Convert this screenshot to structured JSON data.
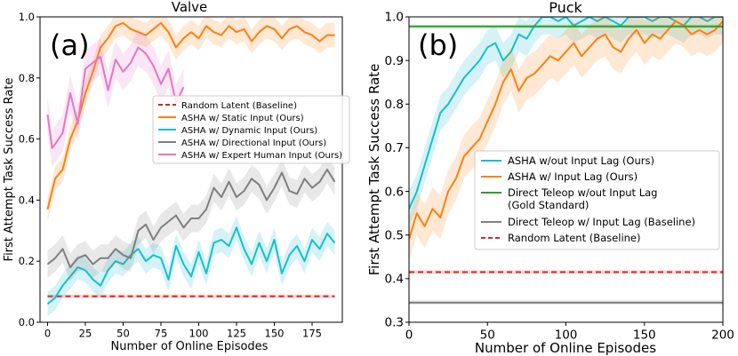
{
  "chart_data": [
    {
      "type": "line",
      "panel_label": "(a)",
      "title": "Valve",
      "xlabel": "Number of Online Episodes",
      "ylabel": "First Attempt Task Success Rate",
      "xlim": [
        -5,
        195
      ],
      "ylim": [
        0.0,
        1.0
      ],
      "xticks": [
        0,
        25,
        50,
        75,
        100,
        125,
        150,
        175
      ],
      "yticks": [
        0.0,
        0.2,
        0.4,
        0.6,
        0.8,
        1.0
      ],
      "legend_position": "center-right",
      "legend": [
        "Random Latent (Baseline)",
        "ASHA w/ Static Input (Ours)",
        "ASHA w/ Dynamic Input (Ours)",
        "ASHA w/ Directional Input (Ours)",
        "ASHA w/ Expert Human Input (Ours)"
      ],
      "series": [
        {
          "name": "Random Latent (Baseline)",
          "color": "#d62728",
          "dashed": true,
          "band": 0.006,
          "x": [
            0,
            190
          ],
          "y": [
            0.085,
            0.085
          ]
        },
        {
          "name": "ASHA w/ Static Input (Ours)",
          "color": "#ff7f0e",
          "dashed": false,
          "band": 0.04,
          "x": [
            0,
            5,
            10,
            15,
            20,
            25,
            30,
            35,
            40,
            45,
            50,
            55,
            60,
            65,
            70,
            75,
            80,
            85,
            90,
            95,
            100,
            105,
            110,
            115,
            120,
            125,
            130,
            135,
            140,
            145,
            150,
            155,
            160,
            165,
            170,
            175,
            180,
            185,
            190
          ],
          "y": [
            0.37,
            0.47,
            0.5,
            0.6,
            0.66,
            0.75,
            0.82,
            0.9,
            0.93,
            0.97,
            0.98,
            0.96,
            0.95,
            0.94,
            0.96,
            0.98,
            0.95,
            0.9,
            0.93,
            0.95,
            0.93,
            0.97,
            0.95,
            0.94,
            0.97,
            0.95,
            0.96,
            0.92,
            0.95,
            0.97,
            0.96,
            0.93,
            0.96,
            0.97,
            0.95,
            0.94,
            0.92,
            0.94,
            0.94
          ]
        },
        {
          "name": "ASHA w/ Dynamic Input (Ours)",
          "color": "#17becf",
          "dashed": false,
          "band": 0.04,
          "x": [
            0,
            5,
            10,
            15,
            20,
            25,
            30,
            35,
            40,
            45,
            50,
            55,
            60,
            65,
            70,
            75,
            80,
            85,
            90,
            95,
            100,
            105,
            110,
            115,
            120,
            125,
            130,
            135,
            140,
            145,
            150,
            155,
            160,
            165,
            170,
            175,
            180,
            185,
            190
          ],
          "y": [
            0.06,
            0.08,
            0.12,
            0.15,
            0.18,
            0.17,
            0.14,
            0.12,
            0.17,
            0.2,
            0.19,
            0.22,
            0.24,
            0.2,
            0.22,
            0.21,
            0.14,
            0.25,
            0.19,
            0.15,
            0.23,
            0.16,
            0.26,
            0.27,
            0.25,
            0.31,
            0.24,
            0.19,
            0.26,
            0.2,
            0.27,
            0.16,
            0.22,
            0.25,
            0.2,
            0.27,
            0.24,
            0.29,
            0.26
          ]
        },
        {
          "name": "ASHA w/ Directional Input (Ours)",
          "color": "#7f7f7f",
          "dashed": false,
          "band": 0.045,
          "x": [
            0,
            5,
            10,
            15,
            20,
            25,
            30,
            35,
            40,
            45,
            50,
            55,
            60,
            65,
            70,
            75,
            80,
            85,
            90,
            95,
            100,
            105,
            110,
            115,
            120,
            125,
            130,
            135,
            140,
            145,
            150,
            155,
            160,
            165,
            170,
            175,
            180,
            185,
            190
          ],
          "y": [
            0.19,
            0.21,
            0.24,
            0.18,
            0.21,
            0.22,
            0.19,
            0.21,
            0.21,
            0.24,
            0.22,
            0.21,
            0.3,
            0.32,
            0.27,
            0.31,
            0.33,
            0.35,
            0.31,
            0.34,
            0.34,
            0.37,
            0.44,
            0.41,
            0.46,
            0.41,
            0.43,
            0.47,
            0.45,
            0.4,
            0.44,
            0.49,
            0.43,
            0.42,
            0.47,
            0.44,
            0.46,
            0.5,
            0.46
          ]
        },
        {
          "name": "ASHA w/ Expert Human Input (Ours)",
          "color": "#e377c2",
          "dashed": false,
          "band": 0.06,
          "x": [
            0,
            3,
            6,
            10,
            15,
            20,
            25,
            30,
            35,
            40,
            45,
            50,
            55,
            60,
            65,
            70,
            75,
            80,
            85,
            90
          ],
          "y": [
            0.68,
            0.57,
            0.59,
            0.62,
            0.75,
            0.65,
            0.83,
            0.85,
            0.87,
            0.76,
            0.86,
            0.82,
            0.85,
            0.9,
            0.88,
            0.84,
            0.78,
            0.83,
            0.72,
            0.77
          ]
        }
      ]
    },
    {
      "type": "line",
      "panel_label": "(b)",
      "title": "Puck",
      "xlabel": "Number of Online Episodes",
      "ylabel": "First Attempt Task Success Rate",
      "xlim": [
        0,
        200
      ],
      "ylim": [
        0.3,
        1.0
      ],
      "xticks": [
        0,
        50,
        100,
        150,
        200
      ],
      "yticks": [
        0.3,
        0.4,
        0.5,
        0.6,
        0.7,
        0.8,
        0.9,
        1.0
      ],
      "legend_position": "center-right",
      "legend": [
        "ASHA w/out Input Lag (Ours)",
        "ASHA w/ Input Lag (Ours)",
        "Direct Teleop w/out Input Lag",
        "(Gold Standard)",
        "Direct Teleop w/ Input Lag (Baseline)",
        "Random Latent (Baseline)"
      ],
      "series": [
        {
          "name": "ASHA w/out Input Lag (Ours)",
          "color": "#17becf",
          "dashed": false,
          "band": 0.04,
          "x": [
            0,
            5,
            10,
            15,
            20,
            25,
            30,
            35,
            40,
            45,
            50,
            55,
            60,
            65,
            70,
            75,
            80,
            85,
            90,
            95,
            100,
            105,
            110,
            115,
            120,
            125,
            130,
            135,
            140,
            145,
            150,
            155,
            160,
            165,
            170,
            175,
            180,
            185,
            190,
            195,
            200
          ],
          "y": [
            0.56,
            0.6,
            0.66,
            0.72,
            0.78,
            0.8,
            0.83,
            0.86,
            0.88,
            0.9,
            0.93,
            0.94,
            0.9,
            0.92,
            0.96,
            0.95,
            0.98,
            1.0,
            1.0,
            0.99,
            1.0,
            0.98,
            0.99,
            1.0,
            0.99,
            1.0,
            0.99,
            0.98,
            1.0,
            1.0,
            1.0,
            0.99,
            1.0,
            1.0,
            0.99,
            0.98,
            1.0,
            1.0,
            0.99,
            1.0,
            1.0
          ]
        },
        {
          "name": "ASHA w/ Input Lag (Ours)",
          "color": "#ff7f0e",
          "dashed": false,
          "band": 0.05,
          "x": [
            0,
            5,
            10,
            15,
            20,
            25,
            30,
            35,
            40,
            45,
            50,
            55,
            60,
            65,
            70,
            75,
            80,
            85,
            90,
            95,
            100,
            105,
            110,
            115,
            120,
            125,
            130,
            135,
            140,
            145,
            150,
            155,
            160,
            165,
            170,
            175,
            180,
            185,
            190,
            195,
            200
          ],
          "y": [
            0.49,
            0.55,
            0.52,
            0.56,
            0.54,
            0.6,
            0.63,
            0.68,
            0.7,
            0.72,
            0.76,
            0.8,
            0.85,
            0.88,
            0.83,
            0.86,
            0.87,
            0.89,
            0.91,
            0.9,
            0.92,
            0.94,
            0.91,
            0.93,
            0.95,
            0.96,
            0.93,
            0.92,
            0.95,
            0.97,
            0.94,
            0.96,
            0.95,
            0.97,
            0.99,
            0.98,
            0.96,
            0.97,
            0.96,
            0.97,
            0.99
          ]
        },
        {
          "name": "Direct Teleop w/out Input Lag (Gold Standard)",
          "color": "#2ca02c",
          "dashed": false,
          "band": 0.004,
          "x": [
            0,
            200
          ],
          "y": [
            0.978,
            0.978
          ]
        },
        {
          "name": "Direct Teleop w/ Input Lag (Baseline)",
          "color": "#7f7f7f",
          "dashed": false,
          "band": 0.005,
          "x": [
            0,
            200
          ],
          "y": [
            0.345,
            0.345
          ]
        },
        {
          "name": "Random Latent (Baseline)",
          "color": "#d62728",
          "dashed": true,
          "band": 0.004,
          "x": [
            0,
            200
          ],
          "y": [
            0.415,
            0.415
          ]
        }
      ]
    }
  ]
}
